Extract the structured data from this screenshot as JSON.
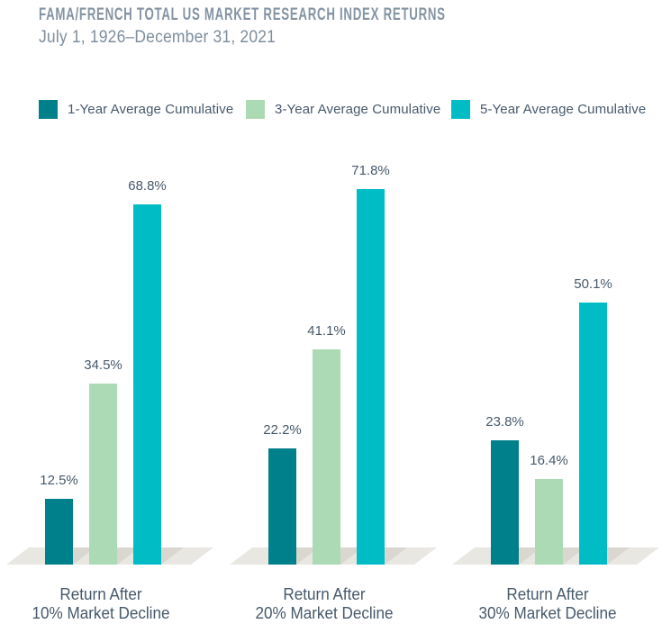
{
  "header": {
    "title": "FAMA/FRENCH TOTAL US MARKET RESEARCH INDEX RETURNS",
    "subtitle": "July 1, 1926–December 31, 2021"
  },
  "colors": {
    "series_1yr": "#00808A",
    "series_3yr": "#ACDAB5",
    "series_5yr": "#00BDC5",
    "platform": "#E8E7E2",
    "platform_shadow": "#D9D7D0",
    "label_text": "#47596B",
    "title_text": "#8494A3",
    "subtitle_text": "#7E8E9D",
    "background": "#FFFFFF"
  },
  "legend": [
    {
      "label": "1-Year Average Cumulative",
      "color": "#00808A"
    },
    {
      "label": "3-Year Average Cumulative",
      "color": "#ACDAB5"
    },
    {
      "label": "5-Year Average Cumulative",
      "color": "#00BDC5"
    }
  ],
  "chart_data": {
    "type": "bar",
    "title": "FAMA/FRENCH TOTAL US MARKET RESEARCH INDEX RETURNS",
    "subtitle": "July 1, 1926–December 31, 2021",
    "categories": [
      {
        "line1": "Return After",
        "line2": "10% Market Decline"
      },
      {
        "line1": "Return After",
        "line2": "20% Market Decline"
      },
      {
        "line1": "Return After",
        "line2": "30% Market Decline"
      }
    ],
    "series": [
      {
        "name": "1-Year Average Cumulative",
        "color": "#00808A",
        "values": [
          12.5,
          22.2,
          23.8
        ]
      },
      {
        "name": "3-Year Average Cumulative",
        "color": "#ACDAB5",
        "values": [
          34.5,
          41.1,
          16.4
        ]
      },
      {
        "name": "5-Year Average Cumulative",
        "color": "#00BDC5",
        "values": [
          68.8,
          71.8,
          50.1
        ]
      }
    ],
    "value_suffix": "%",
    "value_decimals": 1,
    "ylim": [
      0,
      75
    ],
    "grid": false,
    "axes_visible": false,
    "legend_position": "top",
    "data_labels_visible": true
  }
}
